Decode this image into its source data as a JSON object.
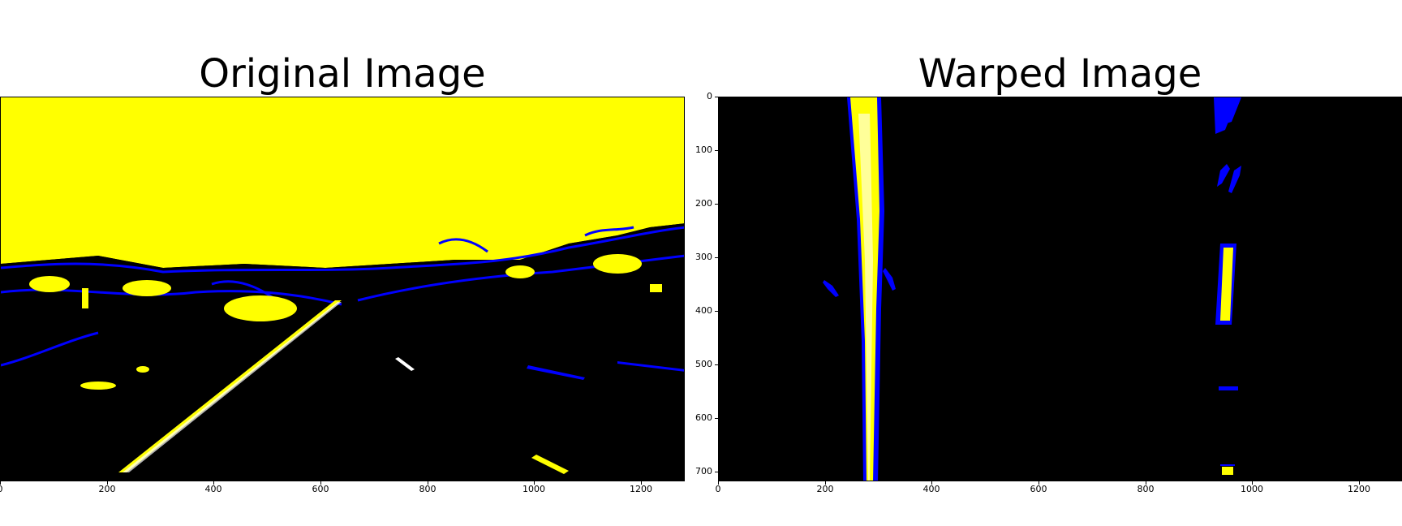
{
  "panels": [
    {
      "title": "Original Image",
      "x_ticks": [
        "0",
        "200",
        "400",
        "600",
        "800",
        "1000",
        "1200"
      ]
    },
    {
      "title": "Warped Image",
      "x_ticks": [
        "0",
        "200",
        "400",
        "600",
        "800",
        "1000",
        "1200"
      ],
      "y_ticks": [
        "0",
        "100",
        "200",
        "300",
        "400",
        "500",
        "600",
        "700"
      ]
    }
  ],
  "colors": {
    "lane": "#ffff00",
    "edge": "#0000ff",
    "background": "#000000"
  }
}
